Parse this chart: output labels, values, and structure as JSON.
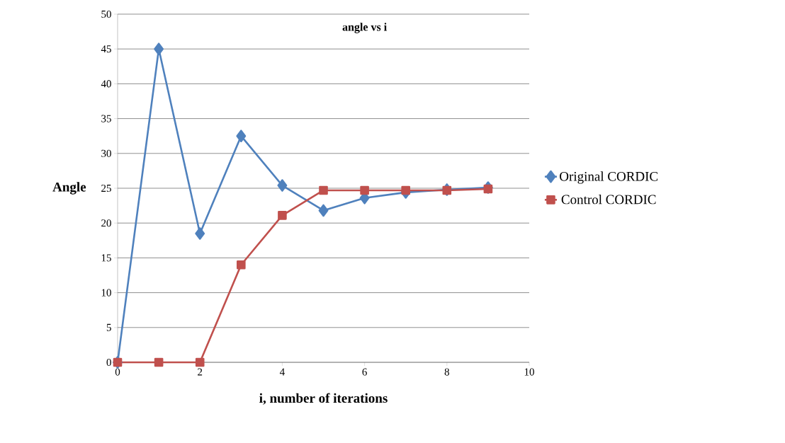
{
  "chart_data": {
    "type": "line",
    "title": "angle vs i",
    "xlabel": "i, number of iterations",
    "ylabel": "Angle",
    "xlim": [
      0,
      10
    ],
    "xticks": [
      0,
      2,
      4,
      6,
      8,
      10
    ],
    "ylim": [
      0,
      50
    ],
    "yticks": [
      0,
      5,
      10,
      15,
      20,
      25,
      30,
      35,
      40,
      45,
      50
    ],
    "grid": "y",
    "legend": "right",
    "line_style": "solid",
    "series": [
      {
        "name": "Original CORDIC",
        "color": "#4f81bd",
        "marker": "diamond",
        "x": [
          0,
          1,
          2,
          3,
          4,
          5,
          6,
          7,
          8,
          9
        ],
        "values": [
          0,
          45,
          18.5,
          32.5,
          25.4,
          21.8,
          23.6,
          24.4,
          24.8,
          25.1
        ]
      },
      {
        "name": "Control CORDIC",
        "color": "#c0504d",
        "marker": "square",
        "x": [
          0,
          1,
          2,
          3,
          4,
          5,
          6,
          7,
          8,
          9
        ],
        "values": [
          0,
          0,
          0,
          14,
          21.1,
          24.7,
          24.7,
          24.7,
          24.7,
          24.9
        ]
      }
    ]
  }
}
